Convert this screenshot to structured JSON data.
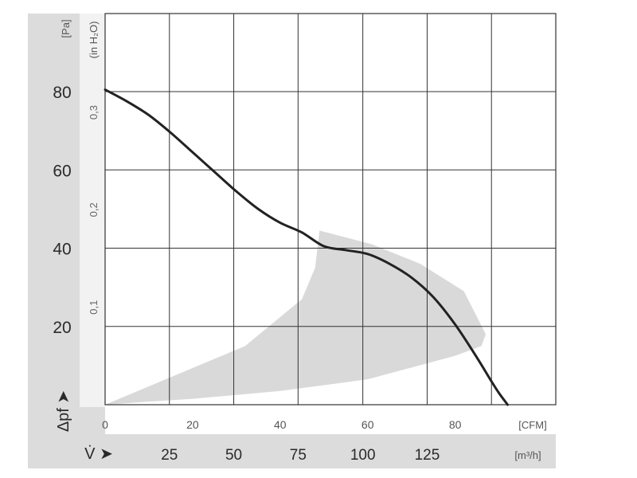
{
  "chart_data": {
    "type": "line",
    "title": "",
    "colors": {
      "band_bg": "#dcdcdc",
      "grid": "#333333",
      "curve": "#222222",
      "operating_area": "#d9d9d9"
    },
    "y_axis_primary": {
      "unit": "[Pa]",
      "tick_labels": [
        "20",
        "40",
        "60",
        "80"
      ],
      "tick_values": [
        20,
        40,
        60,
        80
      ],
      "ylim": [
        0,
        80
      ],
      "axis_symbol": "Δpf ➤"
    },
    "y_axis_secondary": {
      "unit": "(in H₂O)",
      "tick_labels": [
        "0,1",
        "0,2",
        "0,3"
      ],
      "tick_values_pa": [
        24.9,
        49.8,
        74.7
      ]
    },
    "x_axis_primary": {
      "unit": "[CFM]",
      "tick_labels": [
        "0",
        "20",
        "40",
        "60",
        "80"
      ],
      "tick_values": [
        0,
        20,
        40,
        60,
        80
      ],
      "xlim": [
        0,
        103
      ]
    },
    "x_axis_secondary": {
      "unit": "[m³/h]",
      "axis_symbol": "V̇ ➤",
      "tick_labels": [
        "25",
        "50",
        "75",
        "100",
        "125"
      ],
      "tick_values_cfm": [
        14.7,
        29.4,
        44.1,
        58.9,
        73.6
      ]
    },
    "grid": true,
    "series": [
      {
        "x": [
          0,
          5,
          10,
          15,
          20,
          25,
          30,
          35,
          40,
          45,
          50,
          55,
          60,
          65,
          70,
          75,
          80,
          85,
          88,
          90,
          92
        ],
        "y": [
          80.5,
          77.5,
          74,
          69.5,
          64.5,
          59.5,
          54.5,
          50,
          46.5,
          44,
          40.5,
          39.5,
          38.5,
          36,
          32.5,
          27.5,
          20.5,
          12,
          6.5,
          3,
          0
        ]
      }
    ],
    "operating_area": {
      "outline_x": [
        0,
        16,
        32,
        45,
        48,
        49,
        61,
        72,
        82,
        87,
        86,
        80,
        70,
        60,
        50,
        40,
        30,
        20,
        10,
        0
      ],
      "outline_y": [
        0,
        7.5,
        15,
        27,
        35,
        44.5,
        41,
        36,
        29,
        18,
        15,
        12.5,
        9.5,
        6.5,
        5,
        3.5,
        2.5,
        1.5,
        0.8,
        0
      ]
    }
  }
}
